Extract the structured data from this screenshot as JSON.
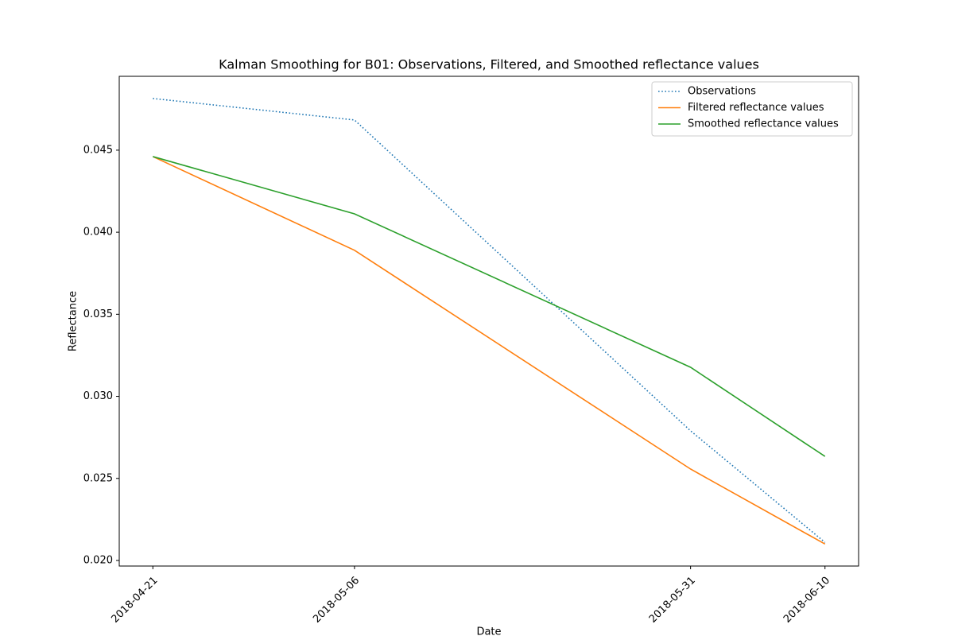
{
  "chart_data": {
    "type": "line",
    "title": "Kalman Smoothing for  B01: Observations, Filtered, and Smoothed reflectance values",
    "xlabel": "Date",
    "ylabel": "Reflectance",
    "x": [
      "2018-04-21",
      "2018-05-06",
      "2018-05-31",
      "2018-06-10"
    ],
    "xlim": [
      "2018-04-18T12:00",
      "2018-06-12T12:00"
    ],
    "ylim": [
      0.01966,
      0.0495
    ],
    "yticks": [
      {
        "value": 0.02,
        "label": "0.020"
      },
      {
        "value": 0.025,
        "label": "0.025"
      },
      {
        "value": 0.03,
        "label": "0.030"
      },
      {
        "value": 0.035,
        "label": "0.035"
      },
      {
        "value": 0.04,
        "label": "0.040"
      },
      {
        "value": 0.045,
        "label": "0.045"
      }
    ],
    "legend": "upper right",
    "series": [
      {
        "name": "Observations",
        "color": "#1f77b4",
        "style": "dotted",
        "values": [
          0.04815,
          0.04684,
          0.0279,
          0.0211
        ]
      },
      {
        "name": "Filtered reflectance values",
        "color": "#ff7f0e",
        "style": "solid",
        "values": [
          0.04461,
          0.0389,
          0.02557,
          0.021
        ]
      },
      {
        "name": "Smoothed reflectance values",
        "color": "#2ca02c",
        "style": "solid",
        "values": [
          0.04461,
          0.04112,
          0.03177,
          0.02634
        ]
      }
    ]
  }
}
